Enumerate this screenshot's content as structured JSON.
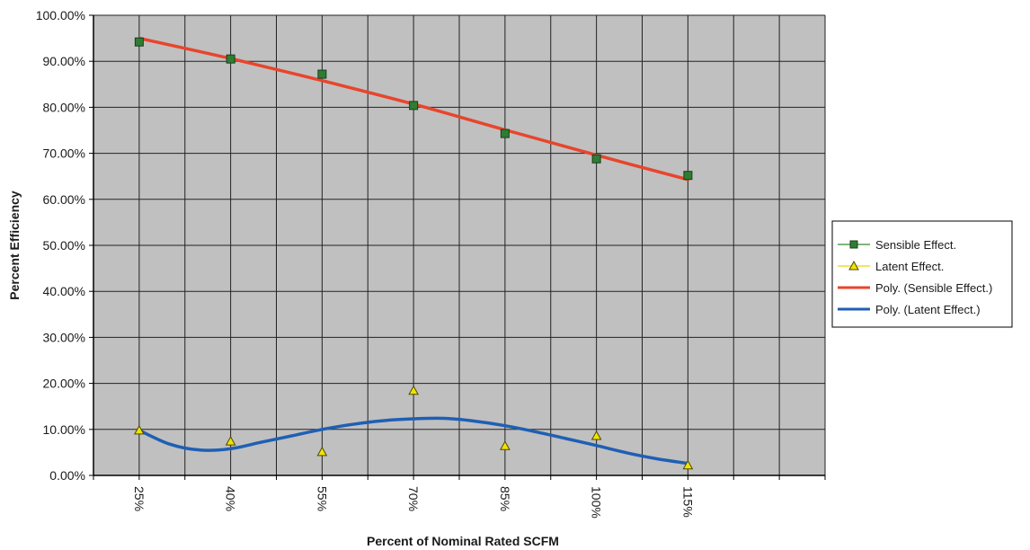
{
  "chart_data": {
    "type": "scatter",
    "title": "",
    "xlabel": "Percent of Nominal Rated SCFM",
    "ylabel": "Percent Efficiency",
    "categories": [
      "25%",
      "40%",
      "55%",
      "70%",
      "85%",
      "100%",
      "115%"
    ],
    "x_values": [
      25,
      40,
      55,
      70,
      85,
      100,
      115
    ],
    "ylim": [
      0,
      100
    ],
    "y_tick_step": 10,
    "y_tick_labels": [
      "0.00%",
      "10.00%",
      "20.00%",
      "30.00%",
      "40.00%",
      "50.00%",
      "60.00%",
      "70.00%",
      "80.00%",
      "90.00%",
      "100.00%"
    ],
    "grid": true,
    "plot_background": "#c0c0c0",
    "legend_position": "right",
    "series": [
      {
        "name": "Sensible Effect.",
        "values": [
          94.2,
          90.5,
          87.2,
          80.4,
          74.3,
          68.8,
          65.2
        ],
        "marker": "square",
        "marker_fill": "#2e7d32",
        "marker_stroke": "#1b3d1c",
        "line_color": "#2e8b2e"
      },
      {
        "name": "Latent Effect.",
        "values": [
          9.8,
          7.4,
          5.1,
          18.4,
          6.4,
          8.6,
          2.2
        ],
        "marker": "triangle",
        "marker_fill": "#f2e200",
        "marker_stroke": "#4a4a00",
        "line_color": "#e6d800"
      }
    ],
    "trendlines": [
      {
        "name": "Poly. (Sensible Effect.)",
        "of": "Sensible Effect.",
        "color": "#e8452c",
        "points": [
          [
            25,
            95.0
          ],
          [
            40,
            90.6
          ],
          [
            55,
            85.8
          ],
          [
            70,
            80.7
          ],
          [
            85,
            75.1
          ],
          [
            100,
            69.6
          ],
          [
            115,
            64.3
          ]
        ]
      },
      {
        "name": "Poly. (Latent Effect.)",
        "of": "Latent Effect.",
        "color": "#1f5fb4",
        "points": [
          [
            25,
            9.8
          ],
          [
            30,
            6.8
          ],
          [
            35,
            5.5
          ],
          [
            40,
            5.8
          ],
          [
            45,
            7.2
          ],
          [
            50,
            8.6
          ],
          [
            55,
            10.0
          ],
          [
            60,
            11.1
          ],
          [
            65,
            11.9
          ],
          [
            70,
            12.3
          ],
          [
            75,
            12.4
          ],
          [
            80,
            11.8
          ],
          [
            85,
            10.8
          ],
          [
            90,
            9.5
          ],
          [
            95,
            8.0
          ],
          [
            100,
            6.5
          ],
          [
            105,
            4.9
          ],
          [
            110,
            3.6
          ],
          [
            115,
            2.6
          ]
        ]
      }
    ]
  }
}
